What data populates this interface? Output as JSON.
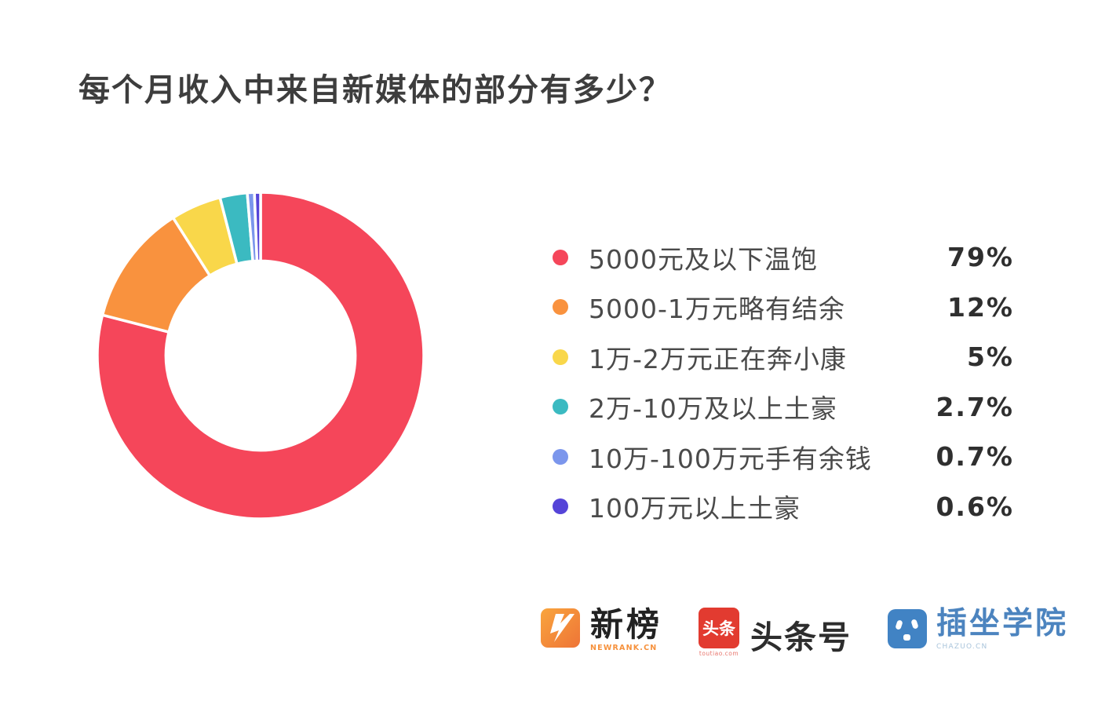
{
  "title": "每个月收入中来自新媒体的部分有多少？",
  "chart_data": {
    "type": "pie",
    "variant": "donut",
    "title": "每个月收入中来自新媒体的部分有多少？",
    "categories": [
      "5000元及以下温饱",
      "5000-1万元略有结余",
      "1万-2万元正在奔小康",
      "2万-10万及以上土豪",
      "10万-100万元手有余钱",
      "100万元以上土豪"
    ],
    "values": [
      79,
      12,
      5,
      2.7,
      0.7,
      0.6
    ],
    "value_labels": [
      "79%",
      "12%",
      "5%",
      "2.7%",
      "0.7%",
      "0.6%"
    ],
    "colors": [
      "#f5465a",
      "#f9923e",
      "#f9d74a",
      "#3bbac1",
      "#7b96ec",
      "#5544d8"
    ],
    "start_angle_deg": -90,
    "direction": "clockwise",
    "hole_ratio": 0.58,
    "slice_gap_color": "#ffffff",
    "legend_position": "right",
    "background": "#ffffff"
  },
  "legend": {
    "items": [
      {
        "label": "5000元及以下温饱",
        "value": "79%"
      },
      {
        "label": "5000-1万元略有结余",
        "value": "12%"
      },
      {
        "label": "1万-2万元正在奔小康",
        "value": "5%"
      },
      {
        "label": "2万-10万及以上土豪",
        "value": "2.7%"
      },
      {
        "label": "10万-100万元手有余钱",
        "value": "0.7%"
      },
      {
        "label": "100万元以上土豪",
        "value": "0.6%"
      }
    ]
  },
  "footer": {
    "newrank": {
      "zh": "新榜",
      "sub": "NEWRANK.CN"
    },
    "toutiao": {
      "icon_text": "头条",
      "sub": "toutiao.com",
      "zh": "头条号"
    },
    "chazuo": {
      "zh": "插坐学院",
      "sub": "CHAZUO.CN"
    }
  }
}
